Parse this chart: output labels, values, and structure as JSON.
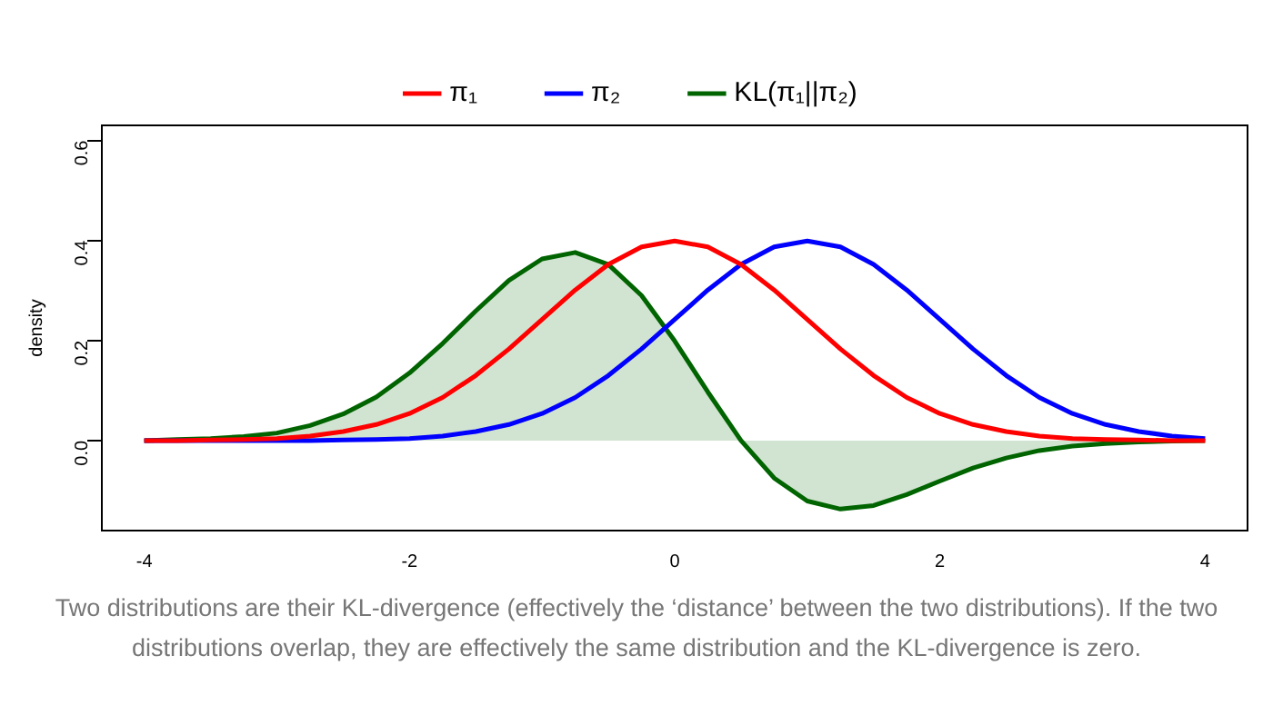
{
  "chart_data": {
    "type": "line",
    "ylabel": "density",
    "legend": "top",
    "grid": false,
    "marker": "none",
    "x": [
      -4,
      -3.75,
      -3.5,
      -3.25,
      -3,
      -2.75,
      -2.5,
      -2.25,
      -2,
      -1.75,
      -1.5,
      -1.25,
      -1,
      -0.75,
      -0.5,
      -0.25,
      0,
      0.25,
      0.5,
      0.75,
      1,
      1.25,
      1.5,
      1.75,
      2,
      2.25,
      2.5,
      2.75,
      3,
      3.25,
      3.5,
      3.75,
      4
    ],
    "series": [
      {
        "name": "π₁",
        "color": "#ff0000",
        "values": [
          0,
          0,
          0.001,
          0.002,
          0.004,
          0.009,
          0.018,
          0.032,
          0.054,
          0.086,
          0.13,
          0.183,
          0.242,
          0.301,
          0.352,
          0.387,
          0.399,
          0.387,
          0.352,
          0.301,
          0.242,
          0.183,
          0.13,
          0.086,
          0.054,
          0.032,
          0.018,
          0.009,
          0.004,
          0.002,
          0.001,
          0,
          0
        ]
      },
      {
        "name": "π₂",
        "color": "#0000ff",
        "values": [
          0,
          0,
          0,
          0,
          0,
          0,
          0.001,
          0.002,
          0.004,
          0.009,
          0.018,
          0.032,
          0.054,
          0.086,
          0.13,
          0.183,
          0.242,
          0.301,
          0.352,
          0.387,
          0.399,
          0.387,
          0.352,
          0.301,
          0.242,
          0.183,
          0.13,
          0.086,
          0.054,
          0.032,
          0.018,
          0.009,
          0.004
        ]
      },
      {
        "name": "KL(π₁||π₂)",
        "type": "area",
        "color": "#006400",
        "values": [
          0,
          0.002,
          0.004,
          0.008,
          0.015,
          0.03,
          0.053,
          0.087,
          0.135,
          0.194,
          0.259,
          0.32,
          0.363,
          0.376,
          0.352,
          0.29,
          0.199,
          0.097,
          0,
          -0.075,
          -0.121,
          -0.137,
          -0.13,
          -0.108,
          -0.081,
          -0.055,
          -0.035,
          -0.02,
          -0.011,
          -0.006,
          -0.003,
          -0.001,
          0
        ]
      }
    ],
    "xlim": [
      -4.32,
      4.32
    ],
    "xticks": [
      -4,
      -2,
      0,
      2,
      4
    ],
    "ylim": [
      -0.18,
      0.63
    ],
    "yticks": [
      {
        "value": 0,
        "label": "0.0"
      },
      {
        "value": 0.2,
        "label": "0.2"
      },
      {
        "value": 0.4,
        "label": "0.4"
      },
      {
        "value": 0.6,
        "label": "0.6"
      }
    ],
    "annotations": [
      "Two distributions are their KL-divergence (effectively the ‘distance’ between the two distributions). If the two distributions overlap, they are effectively the same distribution and the KL-divergence is zero."
    ]
  }
}
